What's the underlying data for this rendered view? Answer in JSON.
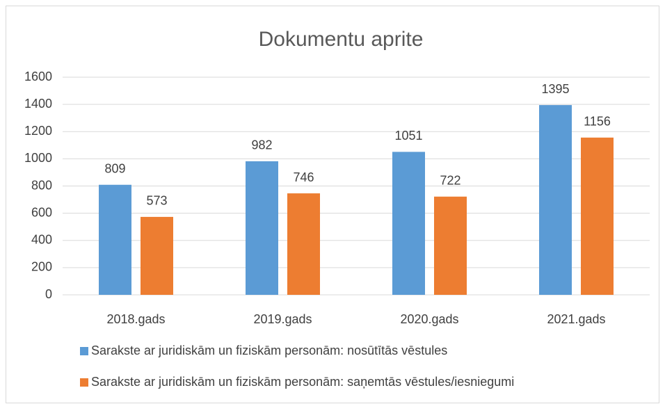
{
  "chart_data": {
    "type": "bar",
    "title": "Dokumentu aprite",
    "categories": [
      "2018.gads",
      "2019.gads",
      "2020.gads",
      "2021.gads"
    ],
    "series": [
      {
        "name": "Sarakste ar juridiskām un fiziskām personām: nosūtītās vēstules",
        "color": "#5b9bd5",
        "values": [
          809,
          982,
          1051,
          1395
        ]
      },
      {
        "name": "Sarakste ar juridiskām un fiziskām personām: saņemtās vēstules/iesniegumi",
        "color": "#ed7d31",
        "values": [
          573,
          746,
          722,
          1156
        ]
      }
    ],
    "ylim": [
      0,
      1600
    ],
    "yticks": [
      0,
      200,
      400,
      600,
      800,
      1000,
      1200,
      1400,
      1600
    ],
    "grid": true,
    "legend": "bottom"
  }
}
